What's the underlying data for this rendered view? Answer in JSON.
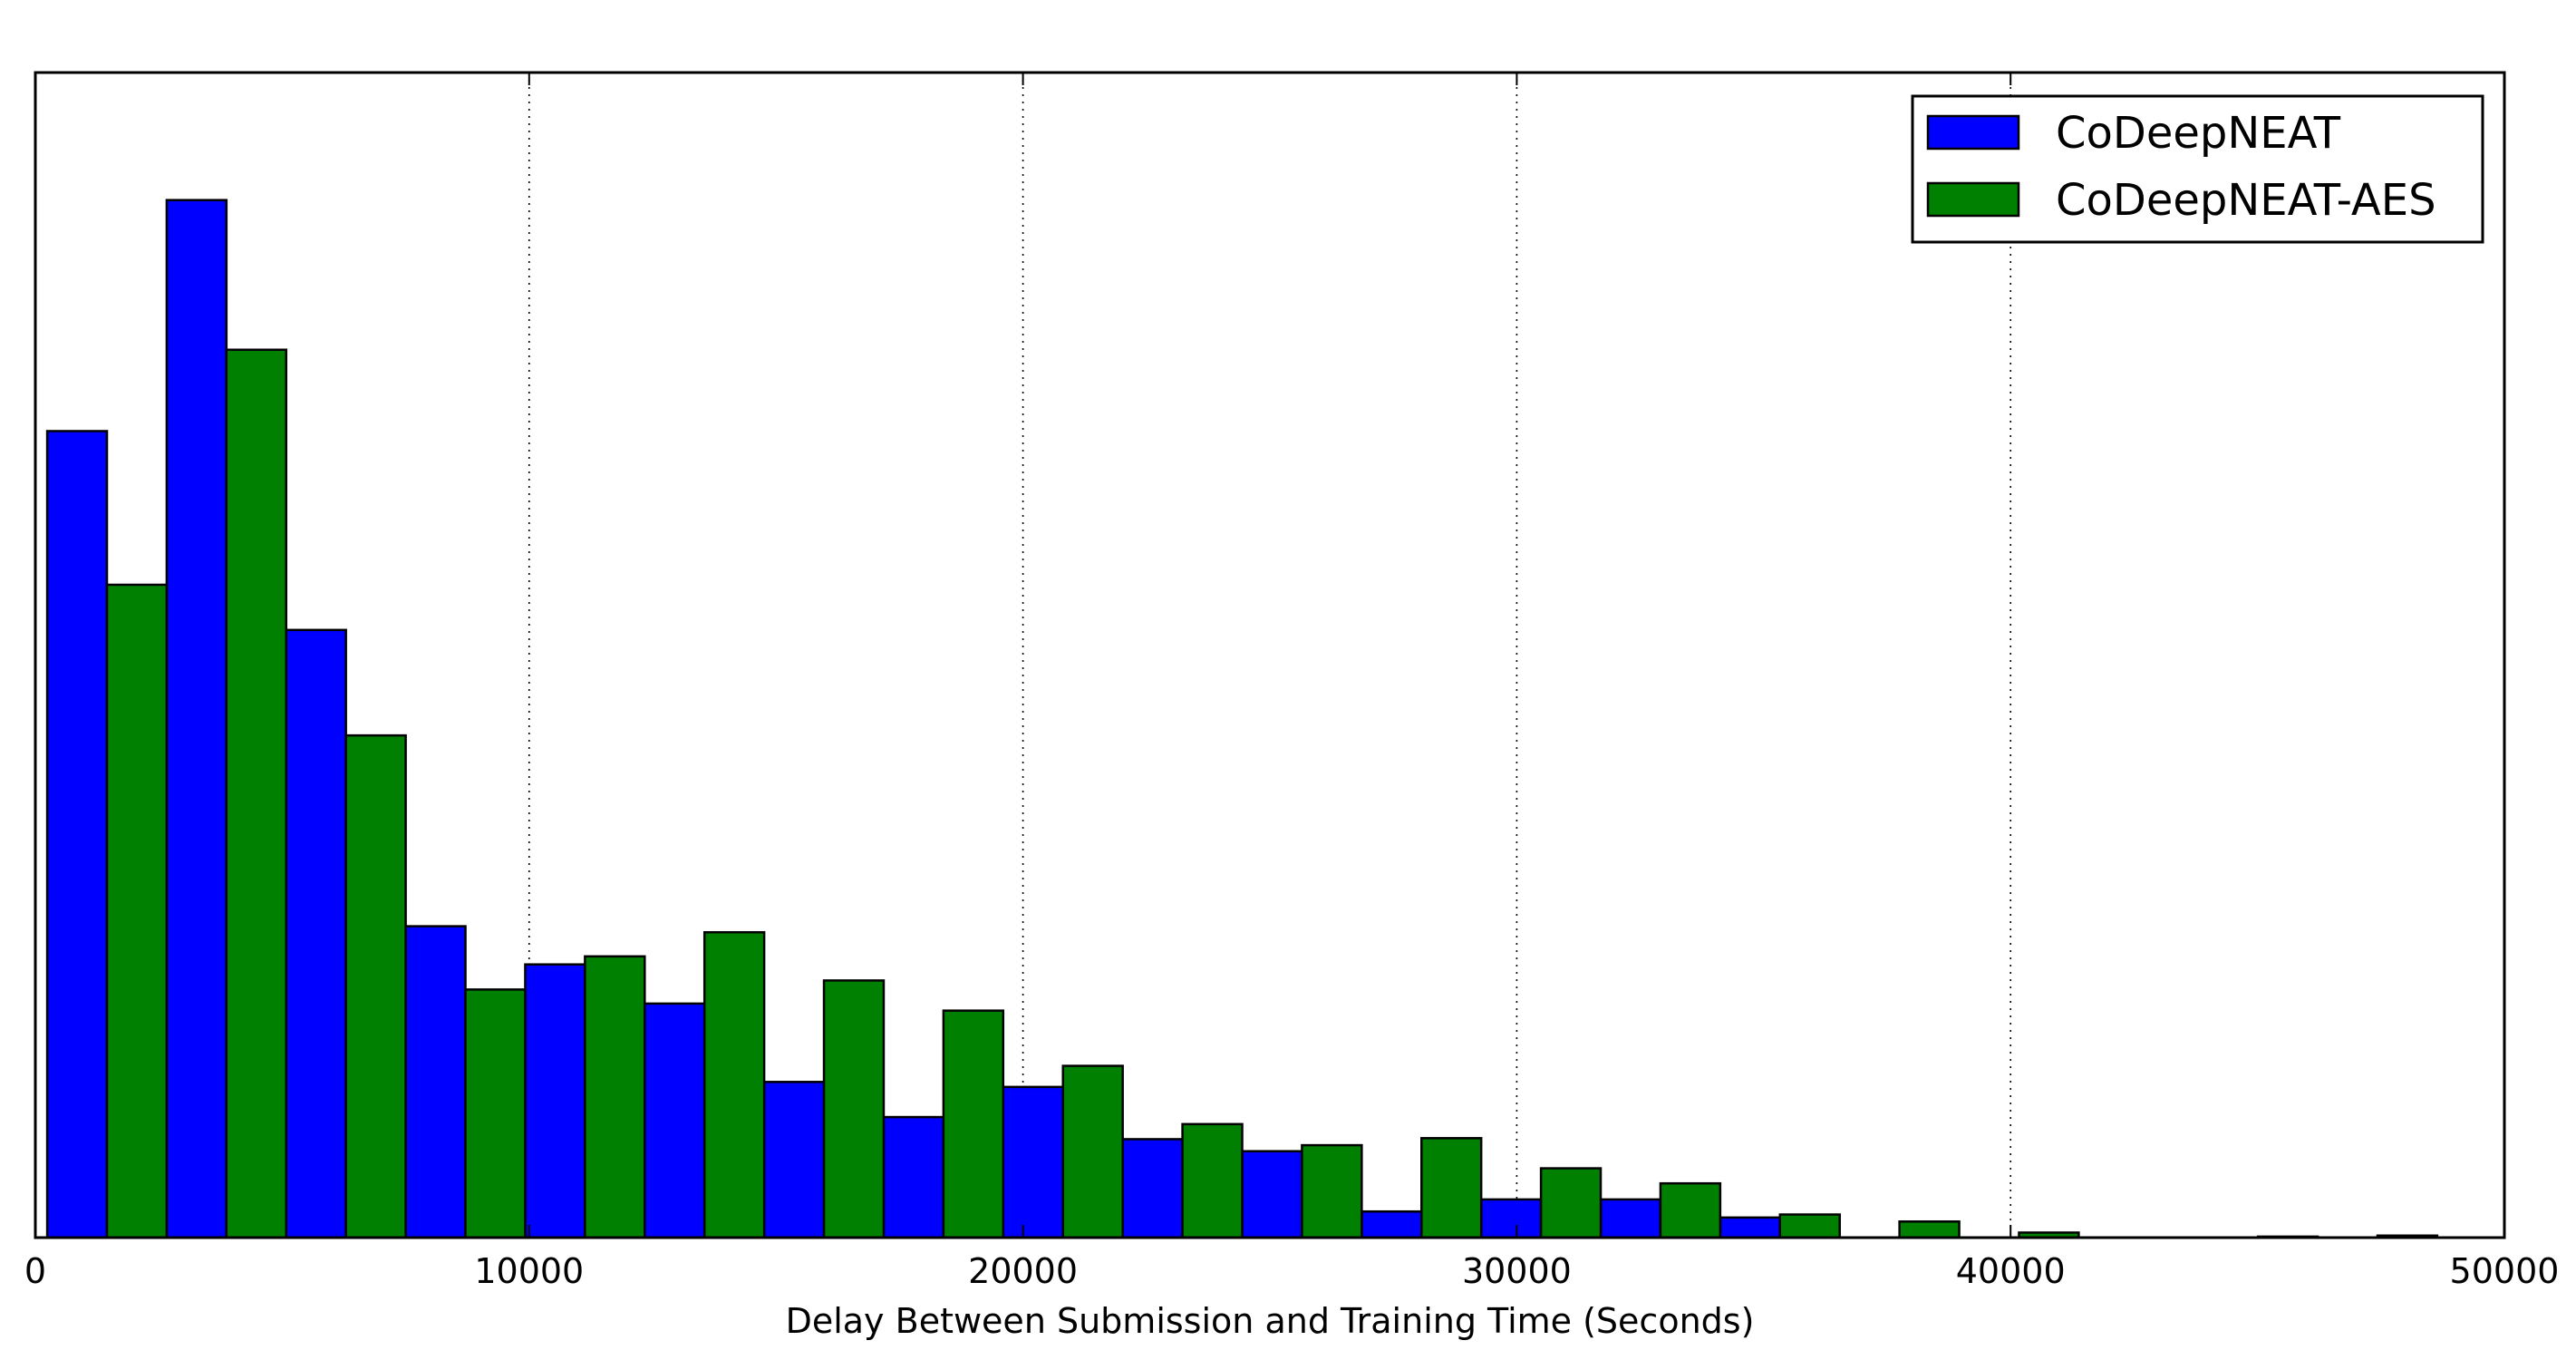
{
  "chart_data": {
    "type": "bar",
    "title": "",
    "xlabel": "Delay Between Submission and Training Time (Seconds)",
    "ylabel": "",
    "xlim": [
      0,
      50000
    ],
    "ylim": [
      0,
      116
    ],
    "xticks": [
      0,
      10000,
      20000,
      30000,
      40000,
      50000
    ],
    "xtick_labels": [
      "0",
      "10000",
      "20000",
      "30000",
      "40000",
      "50000"
    ],
    "grid": "vertical dotted",
    "legend_position": "top-right",
    "bin_width": 2420,
    "bin_starts": [
      240,
      2660,
      5080,
      7500,
      9920,
      12340,
      14760,
      17180,
      19600,
      22020,
      24440,
      26860,
      29280,
      31700,
      34120,
      36540,
      38960,
      41380,
      43800,
      46220
    ],
    "series": [
      {
        "name": "CoDeepNEAT",
        "color": "#0000ff",
        "values": [
          80.3,
          103.3,
          60.5,
          31.0,
          27.2,
          23.3,
          15.5,
          12.0,
          15.0,
          9.8,
          8.6,
          2.6,
          3.8,
          3.8,
          2.0,
          0,
          0,
          0,
          0,
          0
        ]
      },
      {
        "name": "CoDeepNEAT-AES",
        "color": "#008000",
        "values": [
          65.0,
          88.4,
          50.0,
          24.7,
          28.0,
          30.4,
          25.6,
          22.6,
          17.1,
          11.3,
          9.2,
          9.9,
          6.9,
          5.4,
          2.3,
          1.6,
          0.5,
          0,
          0.1,
          0.2
        ]
      }
    ]
  }
}
